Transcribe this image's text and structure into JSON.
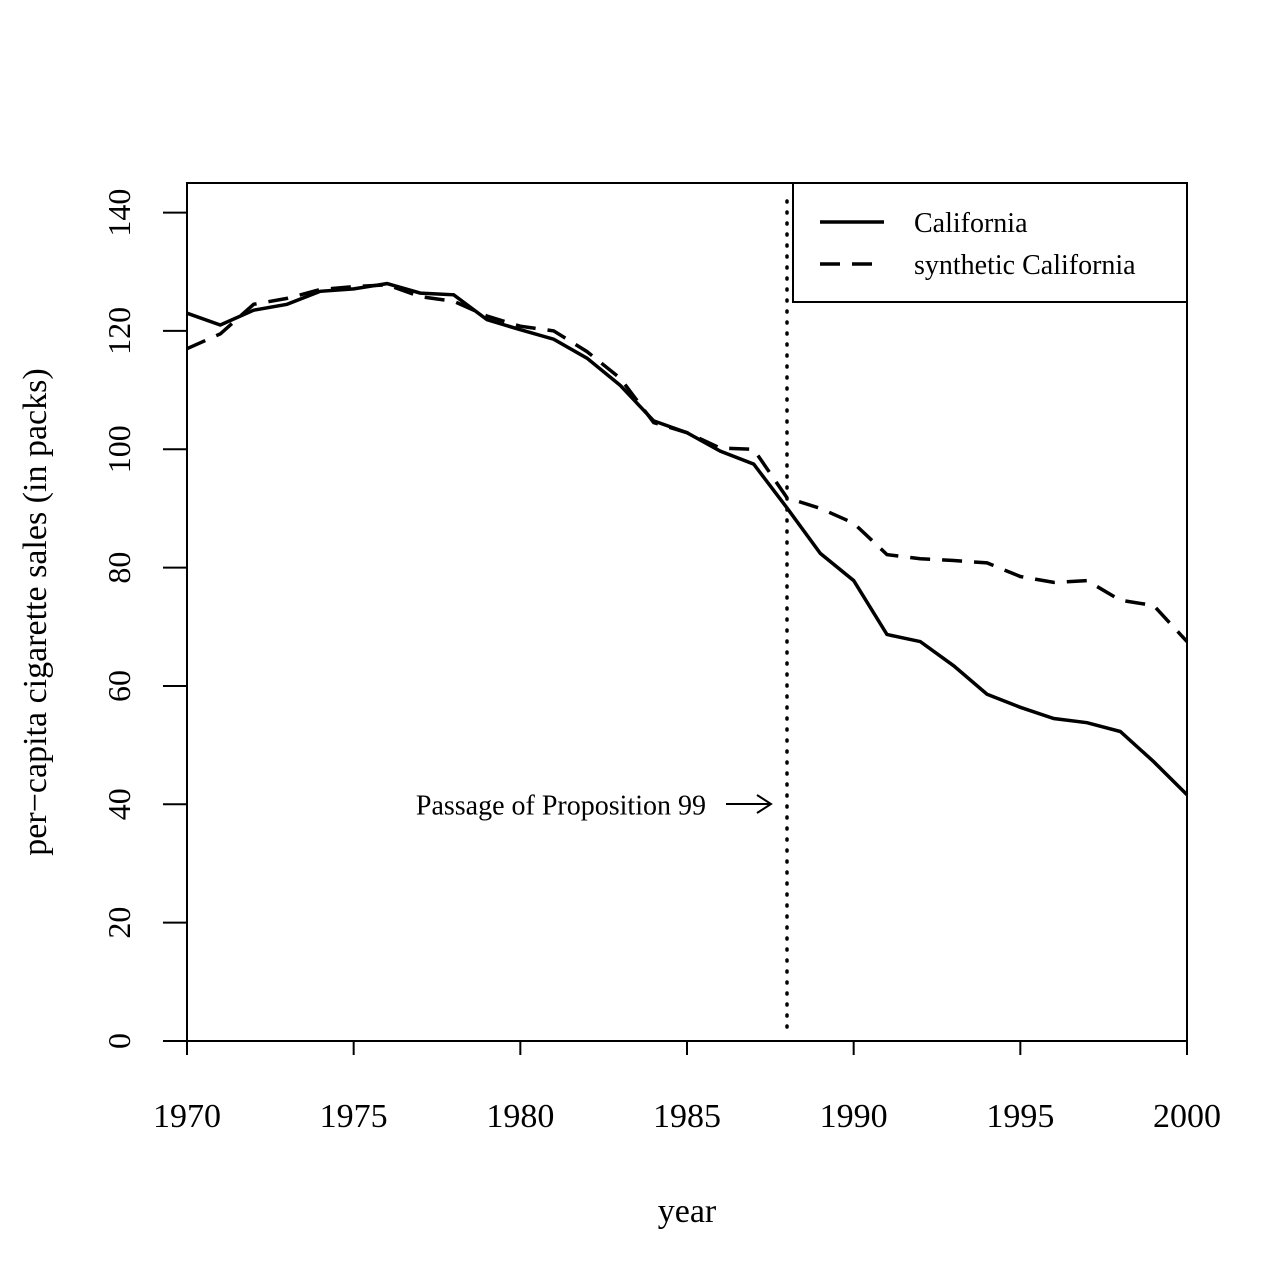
{
  "chart_data": {
    "type": "line",
    "xlabel": "year",
    "ylabel": "per−capita cigarette sales (in packs)",
    "xlim": [
      1970,
      2000
    ],
    "ylim": [
      0,
      145
    ],
    "x_ticks": [
      "1970",
      "1975",
      "1980",
      "1985",
      "1990",
      "1995",
      "2000"
    ],
    "y_ticks": [
      "0",
      "20",
      "40",
      "60",
      "80",
      "100",
      "120",
      "140"
    ],
    "legend_position": "top-right",
    "x": [
      1970,
      1971,
      1972,
      1973,
      1974,
      1975,
      1976,
      1977,
      1978,
      1979,
      1980,
      1981,
      1982,
      1983,
      1984,
      1985,
      1986,
      1987,
      1988,
      1989,
      1990,
      1991,
      1992,
      1993,
      1994,
      1995,
      1996,
      1997,
      1998,
      1999,
      2000
    ],
    "series": [
      {
        "name": "California",
        "line_style": "solid",
        "values": [
          123,
          121,
          123.5,
          124.5,
          126.7,
          127.1,
          128,
          126.4,
          126.1,
          121.9,
          120.2,
          118.6,
          115.4,
          110.8,
          104.8,
          102.8,
          99.7,
          97.5,
          90.1,
          82.4,
          77.8,
          68.7,
          67.5,
          63.4,
          58.6,
          56.4,
          54.5,
          53.8,
          52.3,
          47.2,
          41.6
        ]
      },
      {
        "name": "synthetic California",
        "line_style": "dashed",
        "values": [
          117,
          119.5,
          124.5,
          125.5,
          127,
          127.5,
          127.8,
          125.8,
          125,
          122.5,
          120.8,
          120,
          116.5,
          112,
          104.5,
          102.8,
          100.2,
          100,
          91.8,
          90,
          87.5,
          82.2,
          81.5,
          81.2,
          80.8,
          78.5,
          77.5,
          77.8,
          74.5,
          73.6,
          67.5
        ]
      }
    ],
    "vertical_line": {
      "x": 1988,
      "style": "dotted"
    },
    "annotation": {
      "text": "Passage of Proposition 99",
      "y": 40,
      "arrow": "→"
    },
    "grid": false
  }
}
